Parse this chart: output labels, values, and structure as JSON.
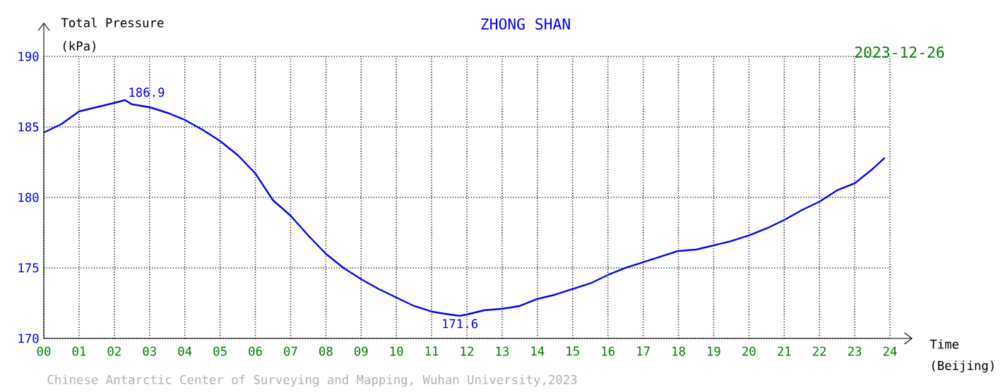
{
  "chart_data": {
    "type": "line",
    "title": "ZHONG SHAN",
    "subtitle": "2023-12-26",
    "xlabel": "Time",
    "ylabel": "Total Pressure",
    "annotations": [
      {
        "text": "186.9",
        "x": 2.3,
        "y": 186.9
      },
      {
        "text": "171.6",
        "x": 11.8,
        "y": 171.6
      },
      "(kPa)",
      "(Beijing)",
      "Chinese Antarctic Center of Surveying and Mapping, Wuhan University,2023"
    ],
    "x": [
      0,
      0.5,
      1,
      1.5,
      2,
      2.3,
      2.5,
      3,
      3.5,
      4,
      4.5,
      5,
      5.5,
      6,
      6.5,
      7,
      7.5,
      8,
      8.5,
      9,
      9.5,
      10,
      10.5,
      11,
      11.5,
      11.8,
      12,
      12.5,
      13,
      13.5,
      14,
      14.5,
      15,
      15.5,
      16,
      16.5,
      17,
      17.5,
      18,
      18.5,
      19,
      19.5,
      20,
      20.5,
      21,
      21.5,
      22,
      22.5,
      23,
      23.5,
      23.85
    ],
    "series": [
      {
        "color": "#0000ff",
        "values": [
          184.6,
          185.2,
          186.1,
          186.4,
          186.7,
          186.9,
          186.6,
          186.4,
          186.0,
          185.5,
          184.8,
          184.0,
          183.0,
          181.7,
          179.8,
          178.7,
          177.3,
          176.0,
          175.0,
          174.2,
          173.5,
          172.9,
          172.3,
          171.9,
          171.7,
          171.6,
          171.7,
          172.0,
          172.1,
          172.3,
          172.8,
          173.1,
          173.5,
          173.9,
          174.5,
          175.0,
          175.4,
          175.8,
          176.2,
          176.3,
          176.6,
          176.9,
          177.3,
          177.8,
          178.4,
          179.1,
          179.7,
          180.5,
          181.0,
          182.0,
          182.8
        ]
      }
    ],
    "xlim": [
      0,
      24
    ],
    "ylim": [
      170,
      190
    ],
    "xticks": [
      {
        "value": 0,
        "label": "00"
      },
      {
        "value": 1,
        "label": "01"
      },
      {
        "value": 2,
        "label": "02"
      },
      {
        "value": 3,
        "label": "03"
      },
      {
        "value": 4,
        "label": "04"
      },
      {
        "value": 5,
        "label": "05"
      },
      {
        "value": 6,
        "label": "06"
      },
      {
        "value": 7,
        "label": "07"
      },
      {
        "value": 8,
        "label": "08"
      },
      {
        "value": 9,
        "label": "09"
      },
      {
        "value": 10,
        "label": "10"
      },
      {
        "value": 11,
        "label": "11"
      },
      {
        "value": 12,
        "label": "12"
      },
      {
        "value": 13,
        "label": "13"
      },
      {
        "value": 14,
        "label": "14"
      },
      {
        "value": 15,
        "label": "15"
      },
      {
        "value": 16,
        "label": "16"
      },
      {
        "value": 17,
        "label": "17"
      },
      {
        "value": 18,
        "label": "18"
      },
      {
        "value": 19,
        "label": "19"
      },
      {
        "value": 20,
        "label": "20"
      },
      {
        "value": 21,
        "label": "21"
      },
      {
        "value": 22,
        "label": "22"
      },
      {
        "value": 23,
        "label": "23"
      },
      {
        "value": 24,
        "label": "24"
      }
    ],
    "yticks": [
      170,
      175,
      180,
      185,
      190
    ],
    "grid": true
  }
}
